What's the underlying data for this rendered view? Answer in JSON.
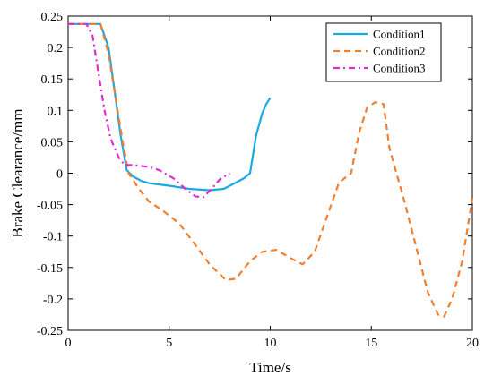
{
  "chart_data": {
    "type": "line",
    "title": "",
    "xlabel": "Time/s",
    "ylabel": "Brake Clearance/mm",
    "xlim": [
      0,
      20
    ],
    "ylim": [
      -0.25,
      0.25
    ],
    "x_ticks": [
      "0",
      "5",
      "10",
      "15",
      "20"
    ],
    "y_ticks": [
      "0.25",
      "0.2",
      "0.15",
      "0.1",
      "0.05",
      "0",
      "-0.05",
      "-0.1",
      "-0.15",
      "-0.2",
      "-0.25"
    ],
    "grid": false,
    "legend_position": "top-right",
    "series": [
      {
        "name": "Condition1",
        "color": "#1ba9e1",
        "dash": "solid",
        "points": [
          [
            0,
            0.2375
          ],
          [
            1.5,
            0.2375
          ],
          [
            1.6,
            0.2375
          ],
          [
            2.0,
            0.2
          ],
          [
            2.3,
            0.13
          ],
          [
            2.6,
            0.06
          ],
          [
            2.9,
            0.005
          ],
          [
            3.2,
            -0.005
          ],
          [
            3.6,
            -0.012
          ],
          [
            4.0,
            -0.016
          ],
          [
            5.0,
            -0.02
          ],
          [
            6.0,
            -0.025
          ],
          [
            7.0,
            -0.027
          ],
          [
            7.7,
            -0.025
          ],
          [
            8.3,
            -0.015
          ],
          [
            8.7,
            -0.008
          ],
          [
            9.0,
            0.0
          ],
          [
            9.3,
            0.06
          ],
          [
            9.6,
            0.095
          ],
          [
            9.8,
            0.11
          ],
          [
            10.0,
            0.12
          ]
        ]
      },
      {
        "name": "Condition2",
        "color": "#f07f32",
        "dash": "dashed",
        "points": [
          [
            0,
            0.2375
          ],
          [
            1.6,
            0.2375
          ],
          [
            2.0,
            0.19
          ],
          [
            2.4,
            0.11
          ],
          [
            2.7,
            0.05
          ],
          [
            3.0,
            0.0
          ],
          [
            3.5,
            -0.025
          ],
          [
            4.0,
            -0.045
          ],
          [
            4.7,
            -0.06
          ],
          [
            5.5,
            -0.08
          ],
          [
            6.2,
            -0.11
          ],
          [
            7.0,
            -0.145
          ],
          [
            7.8,
            -0.17
          ],
          [
            8.3,
            -0.168
          ],
          [
            9.0,
            -0.14
          ],
          [
            9.6,
            -0.125
          ],
          [
            10.3,
            -0.122
          ],
          [
            11.0,
            -0.135
          ],
          [
            11.6,
            -0.145
          ],
          [
            12.2,
            -0.125
          ],
          [
            12.8,
            -0.07
          ],
          [
            13.4,
            -0.015
          ],
          [
            14.0,
            0.0
          ],
          [
            14.4,
            0.065
          ],
          [
            14.8,
            0.105
          ],
          [
            15.2,
            0.113
          ],
          [
            15.6,
            0.11
          ],
          [
            15.9,
            0.04
          ],
          [
            16.2,
            0.005
          ],
          [
            16.6,
            -0.04
          ],
          [
            17.2,
            -0.115
          ],
          [
            17.8,
            -0.19
          ],
          [
            18.3,
            -0.225
          ],
          [
            18.6,
            -0.228
          ],
          [
            19.0,
            -0.2
          ],
          [
            19.5,
            -0.14
          ],
          [
            20.0,
            -0.04
          ]
        ]
      },
      {
        "name": "Condition3",
        "color": "#e22ad3",
        "dash": "dashdot",
        "points": [
          [
            0,
            0.2375
          ],
          [
            0.9,
            0.2375
          ],
          [
            1.2,
            0.22
          ],
          [
            1.5,
            0.16
          ],
          [
            1.8,
            0.1
          ],
          [
            2.1,
            0.055
          ],
          [
            2.5,
            0.025
          ],
          [
            2.8,
            0.013
          ],
          [
            3.2,
            0.013
          ],
          [
            4.0,
            0.01
          ],
          [
            4.5,
            0.005
          ],
          [
            5.2,
            -0.008
          ],
          [
            5.8,
            -0.025
          ],
          [
            6.3,
            -0.037
          ],
          [
            6.7,
            -0.038
          ],
          [
            7.1,
            -0.025
          ],
          [
            7.5,
            -0.01
          ],
          [
            8.0,
            0.0
          ]
        ]
      }
    ]
  }
}
